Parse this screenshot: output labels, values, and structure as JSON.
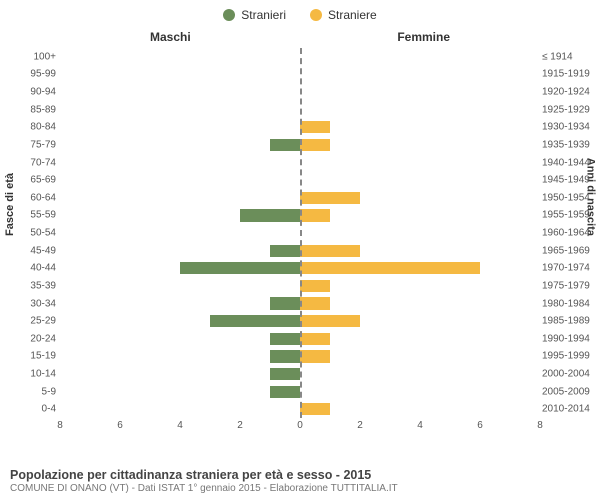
{
  "legend": {
    "male": {
      "label": "Stranieri",
      "color": "#6b8e5a"
    },
    "female": {
      "label": "Straniere",
      "color": "#f5b942"
    }
  },
  "columns": {
    "left": "Maschi",
    "right": "Femmine"
  },
  "axes": {
    "left_label": "Fasce di età",
    "right_label": "Anni di nascita",
    "xmax": 8,
    "xticks": [
      8,
      6,
      4,
      2,
      0,
      2,
      4,
      6,
      8
    ],
    "center_line_color": "#888888",
    "grid_color": "#f0f0f0"
  },
  "rows": [
    {
      "age": "100+",
      "birth": "≤ 1914",
      "m": 0,
      "f": 0
    },
    {
      "age": "95-99",
      "birth": "1915-1919",
      "m": 0,
      "f": 0
    },
    {
      "age": "90-94",
      "birth": "1920-1924",
      "m": 0,
      "f": 0
    },
    {
      "age": "85-89",
      "birth": "1925-1929",
      "m": 0,
      "f": 0
    },
    {
      "age": "80-84",
      "birth": "1930-1934",
      "m": 0,
      "f": 1
    },
    {
      "age": "75-79",
      "birth": "1935-1939",
      "m": 1,
      "f": 1
    },
    {
      "age": "70-74",
      "birth": "1940-1944",
      "m": 0,
      "f": 0
    },
    {
      "age": "65-69",
      "birth": "1945-1949",
      "m": 0,
      "f": 0
    },
    {
      "age": "60-64",
      "birth": "1950-1954",
      "m": 0,
      "f": 2
    },
    {
      "age": "55-59",
      "birth": "1955-1959",
      "m": 2,
      "f": 1
    },
    {
      "age": "50-54",
      "birth": "1960-1964",
      "m": 0,
      "f": 0
    },
    {
      "age": "45-49",
      "birth": "1965-1969",
      "m": 1,
      "f": 2
    },
    {
      "age": "40-44",
      "birth": "1970-1974",
      "m": 4,
      "f": 6
    },
    {
      "age": "35-39",
      "birth": "1975-1979",
      "m": 0,
      "f": 1
    },
    {
      "age": "30-34",
      "birth": "1980-1984",
      "m": 1,
      "f": 1
    },
    {
      "age": "25-29",
      "birth": "1985-1989",
      "m": 3,
      "f": 2
    },
    {
      "age": "20-24",
      "birth": "1990-1994",
      "m": 1,
      "f": 1
    },
    {
      "age": "15-19",
      "birth": "1995-1999",
      "m": 1,
      "f": 1
    },
    {
      "age": "10-14",
      "birth": "2000-2004",
      "m": 1,
      "f": 0
    },
    {
      "age": "5-9",
      "birth": "2005-2009",
      "m": 1,
      "f": 0
    },
    {
      "age": "0-4",
      "birth": "2010-2014",
      "m": 0,
      "f": 1
    }
  ],
  "footer": {
    "title": "Popolazione per cittadinanza straniera per età e sesso - 2015",
    "subtitle": "COMUNE DI ONANO (VT) - Dati ISTAT 1° gennaio 2015 - Elaborazione TUTTITALIA.IT"
  },
  "style": {
    "bar_height_pct": 70,
    "font_family": "Arial",
    "title_fontsize": 12.5,
    "subtitle_fontsize": 10,
    "tick_fontsize": 10,
    "legend_fontsize": 12,
    "background": "#ffffff"
  }
}
